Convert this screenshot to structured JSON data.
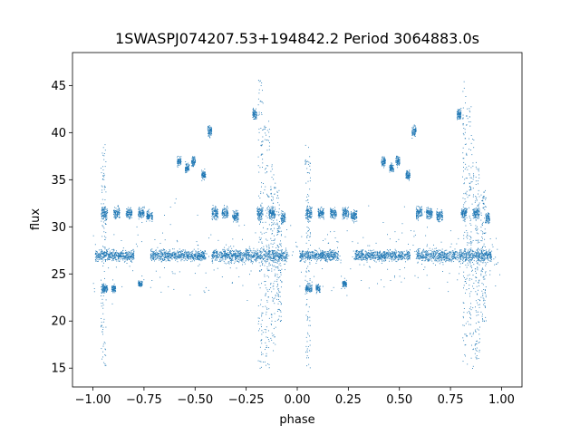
{
  "chart_data": {
    "type": "scatter",
    "title": "1SWASPJ074207.53+194842.2 Period 3064883.0s",
    "xlabel": "phase",
    "ylabel": "flux",
    "xlim": [
      -1.1,
      1.1
    ],
    "ylim": [
      13,
      48.5
    ],
    "xticks": [
      -1.0,
      -0.75,
      -0.5,
      -0.25,
      0.0,
      0.25,
      0.5,
      0.75,
      1.0
    ],
    "xtick_labels": [
      "−1.00",
      "−0.75",
      "−0.50",
      "−0.25",
      "0.00",
      "0.25",
      "0.50",
      "0.75",
      "1.00"
    ],
    "yticks": [
      15,
      20,
      25,
      30,
      35,
      40,
      45
    ],
    "ytick_labels": [
      "15",
      "20",
      "25",
      "30",
      "35",
      "40",
      "45"
    ],
    "grid": false,
    "point_color": "#1f77b4",
    "series": [
      {
        "values_note": "phase-folded light curve, duplicated at phase+1",
        "clusters": [
          {
            "x": [
              -0.99,
              -0.8
            ],
            "y": 27.0,
            "spread": 1.0
          },
          {
            "x": [
              -0.72,
              -0.45
            ],
            "y": 27.0,
            "spread": 1.0
          },
          {
            "x": [
              -0.42,
              -0.05
            ],
            "y": 27.0,
            "spread": 1.2
          },
          {
            "x": [
              -0.96,
              -0.93
            ],
            "y": 31.5,
            "spread": 1.3
          },
          {
            "x": [
              -0.9,
              -0.87
            ],
            "y": 31.5,
            "spread": 1.0
          },
          {
            "x": [
              -0.84,
              -0.81
            ],
            "y": 31.5,
            "spread": 1.0
          },
          {
            "x": [
              -0.78,
              -0.75
            ],
            "y": 31.5,
            "spread": 1.0
          },
          {
            "x": [
              -0.74,
              -0.71
            ],
            "y": 31.2,
            "spread": 1.0
          },
          {
            "x": [
              -0.42,
              -0.39
            ],
            "y": 31.5,
            "spread": 1.2
          },
          {
            "x": [
              -0.37,
              -0.34
            ],
            "y": 31.5,
            "spread": 1.0
          },
          {
            "x": [
              -0.32,
              -0.29
            ],
            "y": 31.2,
            "spread": 1.0
          },
          {
            "x": [
              -0.2,
              -0.17
            ],
            "y": 31.5,
            "spread": 1.2
          },
          {
            "x": [
              -0.14,
              -0.11
            ],
            "y": 31.5,
            "spread": 1.2
          },
          {
            "x": [
              -0.08,
              -0.06
            ],
            "y": 31.0,
            "spread": 1.0
          },
          {
            "x": [
              -0.96,
              -0.93
            ],
            "y": 23.5,
            "spread": 0.8
          },
          {
            "x": [
              -0.91,
              -0.89
            ],
            "y": 23.5,
            "spread": 0.8
          },
          {
            "x": [
              -0.59,
              -0.57
            ],
            "y": 37.0,
            "spread": 0.8
          },
          {
            "x": [
              -0.55,
              -0.53
            ],
            "y": 36.3,
            "spread": 0.8
          },
          {
            "x": [
              -0.52,
              -0.5
            ],
            "y": 37.0,
            "spread": 1.0
          },
          {
            "x": [
              -0.47,
              -0.45
            ],
            "y": 35.5,
            "spread": 0.8
          },
          {
            "x": [
              -0.44,
              -0.42
            ],
            "y": 40.2,
            "spread": 1.0
          },
          {
            "x": [
              -0.22,
              -0.2
            ],
            "y": 42.0,
            "spread": 1.0
          },
          {
            "x": [
              -0.78,
              -0.76
            ],
            "y": 24.0,
            "spread": 0.6
          }
        ],
        "vertical_scatter": [
          {
            "x": -0.95,
            "ylo": 15.0,
            "yhi": 39.0
          },
          {
            "x": -0.18,
            "ylo": 15.0,
            "yhi": 46.0
          },
          {
            "x": -0.15,
            "ylo": 15.0,
            "yhi": 43.0
          },
          {
            "x": -0.12,
            "ylo": 16.0,
            "yhi": 37.0
          },
          {
            "x": -0.09,
            "ylo": 20.0,
            "yhi": 34.0
          }
        ]
      }
    ]
  }
}
